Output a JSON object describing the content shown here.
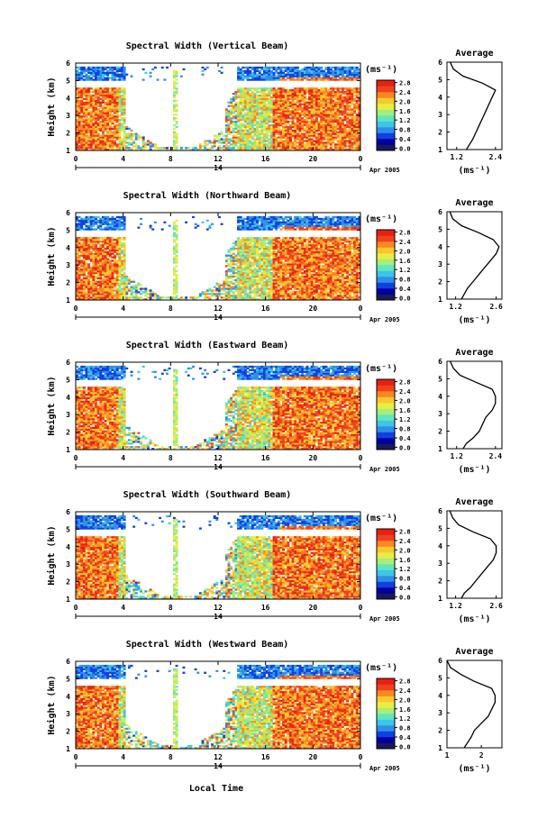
{
  "colors": {
    "colormap": [
      "#1a1a5a",
      "#0000a0",
      "#1040e0",
      "#2f8fe8",
      "#3cc6e8",
      "#5fe6c0",
      "#a6ee7a",
      "#e8ee40",
      "#f8c830",
      "#f88820",
      "#f04020",
      "#e82010"
    ],
    "background": "#ffffff",
    "line": "#000000"
  },
  "shared": {
    "date_label": "Apr 2005",
    "day_label": "14",
    "x_axis_label": "Local Time",
    "colorbar_unit": "(ms⁻¹)",
    "avg_title": "Average",
    "avg_xlabel": "(ms⁻¹)",
    "ylabel": "Height (km)"
  },
  "chart_data": [
    {
      "type": "heatmap",
      "title": "Spectral Width (Vertical Beam)",
      "ylabel": "Height (km)",
      "x_ticks": [
        "0",
        "4",
        "8",
        "12",
        "16",
        "20",
        "0"
      ],
      "y_ticks": [
        "1",
        "2",
        "3",
        "4",
        "5",
        "6"
      ],
      "xlim": [
        0,
        24
      ],
      "ylim": [
        1,
        6
      ],
      "colorbar_ticks": [
        "0.0",
        "0.4",
        "0.8",
        "1.2",
        "1.6",
        "2.0",
        "2.4",
        "2.8"
      ],
      "colorbar_range": [
        0.0,
        3.0
      ],
      "average": {
        "title": "Average",
        "xlabel": "(ms⁻¹)",
        "x_ticks": [
          "1.2",
          "2.4"
        ],
        "xlim": [
          0.9,
          2.6
        ],
        "y_ticks": [
          "1",
          "2",
          "3",
          "4",
          "5",
          "6"
        ],
        "height": [
          1.0,
          1.3,
          1.6,
          2.0,
          2.4,
          2.8,
          3.2,
          3.6,
          4.0,
          4.4,
          4.8,
          5.2,
          5.6,
          6.0
        ],
        "value": [
          1.5,
          1.6,
          1.7,
          1.8,
          1.9,
          2.0,
          2.1,
          2.2,
          2.3,
          2.4,
          2.0,
          1.4,
          1.1,
          1.0
        ]
      }
    },
    {
      "type": "heatmap",
      "title": "Spectral Width (Northward Beam)",
      "ylabel": "Height (km)",
      "x_ticks": [
        "0",
        "4",
        "8",
        "12",
        "16",
        "20",
        "0"
      ],
      "y_ticks": [
        "1",
        "2",
        "3",
        "4",
        "5",
        "6"
      ],
      "xlim": [
        0,
        24
      ],
      "ylim": [
        1,
        6
      ],
      "colorbar_ticks": [
        "0.0",
        "0.4",
        "0.8",
        "1.2",
        "1.6",
        "2.0",
        "2.4",
        "2.8"
      ],
      "colorbar_range": [
        0.0,
        3.0
      ],
      "average": {
        "title": "Average",
        "xlabel": "(ms⁻¹)",
        "x_ticks": [
          "1.2",
          "2.6"
        ],
        "xlim": [
          0.9,
          2.8
        ],
        "y_ticks": [
          "1",
          "2",
          "3",
          "4",
          "5",
          "6"
        ],
        "height": [
          1.0,
          1.3,
          1.6,
          2.0,
          2.4,
          2.8,
          3.2,
          3.6,
          4.0,
          4.4,
          4.8,
          5.2,
          5.6,
          6.0
        ],
        "value": [
          1.4,
          1.5,
          1.6,
          1.8,
          2.0,
          2.2,
          2.4,
          2.6,
          2.7,
          2.5,
          2.0,
          1.4,
          1.1,
          1.0
        ]
      }
    },
    {
      "type": "heatmap",
      "title": "Spectral Width (Eastward Beam)",
      "ylabel": "Height (km)",
      "x_ticks": [
        "0",
        "4",
        "8",
        "12",
        "16",
        "20",
        "0"
      ],
      "y_ticks": [
        "1",
        "2",
        "3",
        "4",
        "5",
        "6"
      ],
      "xlim": [
        0,
        24
      ],
      "ylim": [
        1,
        6
      ],
      "colorbar_ticks": [
        "0.0",
        "0.4",
        "0.8",
        "1.2",
        "1.6",
        "2.0",
        "2.4",
        "2.8"
      ],
      "colorbar_range": [
        0.0,
        3.0
      ],
      "average": {
        "title": "Average",
        "xlabel": "(ms⁻¹)",
        "x_ticks": [
          "1.2",
          "2.4"
        ],
        "xlim": [
          0.9,
          2.6
        ],
        "y_ticks": [
          "1",
          "2",
          "3",
          "4",
          "5",
          "6"
        ],
        "height": [
          1.0,
          1.3,
          1.6,
          2.0,
          2.4,
          2.8,
          3.2,
          3.6,
          4.0,
          4.4,
          4.8,
          5.2,
          5.6,
          6.0
        ],
        "value": [
          1.4,
          1.5,
          1.7,
          1.9,
          2.0,
          2.1,
          2.3,
          2.4,
          2.4,
          2.3,
          1.8,
          1.3,
          1.1,
          1.0
        ]
      }
    },
    {
      "type": "heatmap",
      "title": "Spectral Width (Southward Beam)",
      "ylabel": "Height (km)",
      "x_ticks": [
        "0",
        "4",
        "8",
        "12",
        "16",
        "20",
        "0"
      ],
      "y_ticks": [
        "1",
        "2",
        "3",
        "4",
        "5",
        "6"
      ],
      "xlim": [
        0,
        24
      ],
      "ylim": [
        1,
        6
      ],
      "colorbar_ticks": [
        "0.0",
        "0.4",
        "0.8",
        "1.2",
        "1.6",
        "2.0",
        "2.4",
        "2.8"
      ],
      "colorbar_range": [
        0.0,
        3.0
      ],
      "average": {
        "title": "Average",
        "xlabel": "(ms⁻¹)",
        "x_ticks": [
          "1.2",
          "2.6"
        ],
        "xlim": [
          0.9,
          2.8
        ],
        "y_ticks": [
          "1",
          "2",
          "3",
          "4",
          "5",
          "6"
        ],
        "height": [
          1.0,
          1.3,
          1.6,
          2.0,
          2.4,
          2.8,
          3.2,
          3.6,
          4.0,
          4.4,
          4.8,
          5.2,
          5.6,
          6.0
        ],
        "value": [
          1.4,
          1.5,
          1.7,
          1.9,
          2.1,
          2.3,
          2.5,
          2.6,
          2.6,
          2.4,
          1.8,
          1.3,
          1.1,
          1.0
        ]
      }
    },
    {
      "type": "heatmap",
      "title": "Spectral Width (Westward Beam)",
      "ylabel": "Height (km)",
      "x_ticks": [
        "0",
        "4",
        "8",
        "12",
        "16",
        "20",
        "0"
      ],
      "y_ticks": [
        "1",
        "2",
        "3",
        "4",
        "5",
        "6"
      ],
      "xlim": [
        0,
        24
      ],
      "ylim": [
        1,
        6
      ],
      "colorbar_ticks": [
        "0.0",
        "0.4",
        "0.8",
        "1.2",
        "1.6",
        "2.0",
        "2.4",
        "2.8"
      ],
      "colorbar_range": [
        0.0,
        3.0
      ],
      "average": {
        "title": "Average",
        "xlabel": "(ms⁻¹)",
        "x_ticks": [
          "1",
          "2"
        ],
        "xlim": [
          1.0,
          2.6
        ],
        "y_ticks": [
          "1",
          "2",
          "3",
          "4",
          "5",
          "6"
        ],
        "height": [
          1.0,
          1.3,
          1.6,
          2.0,
          2.4,
          2.8,
          3.2,
          3.6,
          4.0,
          4.4,
          4.8,
          5.2,
          5.6,
          6.0
        ],
        "value": [
          1.5,
          1.6,
          1.7,
          1.8,
          2.0,
          2.2,
          2.3,
          2.4,
          2.4,
          2.3,
          1.8,
          1.4,
          1.1,
          1.0
        ]
      }
    }
  ]
}
